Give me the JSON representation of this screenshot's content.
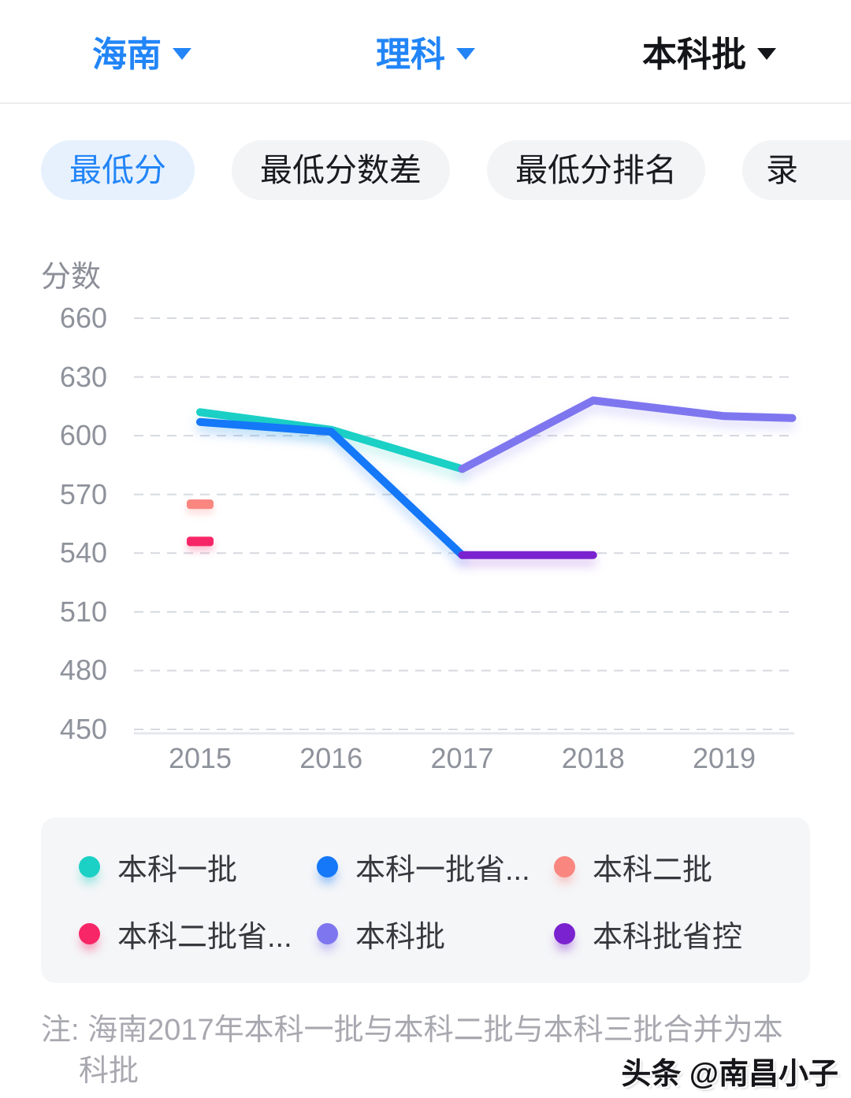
{
  "header": {
    "region": {
      "label": "海南"
    },
    "subject": {
      "label": "理科"
    },
    "batch": {
      "label": "本科批"
    }
  },
  "tabs": [
    {
      "label": "最低分",
      "active": true
    },
    {
      "label": "最低分数差",
      "active": false
    },
    {
      "label": "最低分排名",
      "active": false
    },
    {
      "label": "录",
      "active": false
    }
  ],
  "chart_data": {
    "type": "line",
    "ylabel": "分数",
    "x_ticks": [
      2015,
      2016,
      2017,
      2018,
      2019
    ],
    "y_ticks": [
      660,
      630,
      600,
      570,
      540,
      510,
      480,
      450
    ],
    "ylim": [
      450,
      672
    ],
    "grid": "horizontal-dashed",
    "legend_position": "bottom",
    "series": [
      {
        "name": "本科一批",
        "color": "#1bd0c5",
        "points": [
          [
            2015,
            612
          ],
          [
            2016,
            603
          ],
          [
            2017,
            583
          ]
        ]
      },
      {
        "name": "本科一批省...",
        "color": "#1478f8",
        "points": [
          [
            2015,
            607
          ],
          [
            2016,
            602
          ],
          [
            2017,
            539
          ]
        ]
      },
      {
        "name": "本科二批",
        "color": "#f9867f",
        "points": [
          [
            2015,
            565
          ]
        ],
        "marker": "dash"
      },
      {
        "name": "本科二批省...",
        "color": "#f72667",
        "points": [
          [
            2015,
            546
          ]
        ],
        "marker": "dash"
      },
      {
        "name": "本科批",
        "color": "#7e76ef",
        "points": [
          [
            2017,
            583
          ],
          [
            2018,
            618
          ],
          [
            2019,
            610
          ],
          [
            2019.52,
            609
          ]
        ]
      },
      {
        "name": "本科批省控",
        "color": "#7a22cf",
        "points": [
          [
            2017,
            539
          ],
          [
            2018,
            539
          ]
        ]
      }
    ]
  },
  "note": {
    "lines": [
      "注: 海南2017年本科一批与本科二批与本科三批合并为本",
      "科批"
    ]
  },
  "watermark": "头条 @南昌小子",
  "colors": {
    "accent_blue": "#2285f7",
    "tab_active_bg": "#e7f1fe",
    "tab_bg": "#f3f4f6",
    "grid": "#d6d9df",
    "axis_line": "#e6e7ee",
    "tick_text": "#8e929b",
    "legend_bg": "#f5f6f8",
    "note_text": "#a8a8b0"
  }
}
